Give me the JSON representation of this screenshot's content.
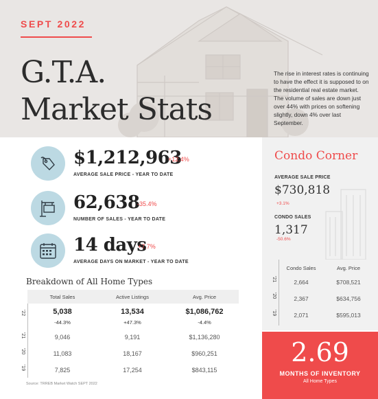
{
  "header": {
    "date": "SEPT 2022",
    "title_line1": "G.T.A.",
    "title_line2": "Market Stats",
    "intro": "The rise in interest rates is continuing to have the effect it is supposed to on the residential real estate market.  The volume of sales are down just over 44% with prices on softening slightly, down 4% over last September."
  },
  "stats": [
    {
      "icon": "price-tag-icon",
      "value": "$1,212,963",
      "change": "+12.4%",
      "label": "AVERAGE SALE PRICE - YEAR TO DATE"
    },
    {
      "icon": "sign-post-icon",
      "value": "62,638",
      "change": "-35.4%",
      "label": "NUMBER OF SALES - YEAR TO DATE"
    },
    {
      "icon": "calendar-icon",
      "value": "14 days",
      "change": "+7.7%",
      "label": "AVERAGE DAYS ON MARKET - YEAR TO DATE"
    }
  ],
  "breakdown": {
    "title": "Breakdown of All Home Types",
    "columns": [
      "Total Sales",
      "Active Listings",
      "Avg. Price"
    ],
    "rows": [
      {
        "year": "'22",
        "values": [
          "5,038",
          "13,534",
          "$1,086,762"
        ],
        "changes": [
          "-44.3%",
          "+47.3%",
          "-4.4%"
        ]
      },
      {
        "year": "'21",
        "values": [
          "9,046",
          "9,191",
          "$1,136,280"
        ]
      },
      {
        "year": "'20",
        "values": [
          "11,083",
          "18,167",
          "$960,251"
        ]
      },
      {
        "year": "'19",
        "values": [
          "7,825",
          "17,254",
          "$843,115"
        ]
      }
    ],
    "source": "Source: TRREB Market Watch SEPT 2022"
  },
  "condo": {
    "title": "Condo Corner",
    "avg_price_label": "AVERAGE SALE PRICE",
    "avg_price_value": "$730,818",
    "avg_price_change": "+3.1%",
    "sales_label": "CONDO SALES",
    "sales_value": "1,317",
    "sales_change": "-50.6%",
    "columns": [
      "Condo Sales",
      "Avg. Price"
    ],
    "rows": [
      {
        "year": "'21",
        "values": [
          "2,664",
          "$708,521"
        ]
      },
      {
        "year": "'20",
        "values": [
          "2,367",
          "$634,756"
        ]
      },
      {
        "year": "'19",
        "values": [
          "2,071",
          "$595,013"
        ]
      }
    ]
  },
  "inventory": {
    "value": "2.69",
    "label": "MONTHS OF INVENTORY",
    "sub": "All Home Types"
  },
  "colors": {
    "accent": "#ef4b4b",
    "icon_circle": "#bcd9e3",
    "header_bg": "#e9e6e4",
    "panel_bg": "#f1f1f1"
  }
}
